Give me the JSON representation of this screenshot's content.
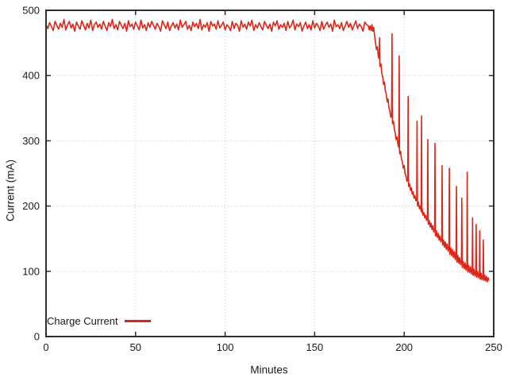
{
  "figure": {
    "background": "#ffffff",
    "border_color": "#2d2d2d",
    "grid_color": "#d6d6d6",
    "text_color": "#1a1a1a"
  },
  "chart_data": {
    "type": "line",
    "title": "",
    "xlabel": "Minutes",
    "ylabel": "Current (mA)",
    "xlim": [
      0,
      250
    ],
    "ylim": [
      0,
      500
    ],
    "x_ticks": [
      0,
      50,
      100,
      150,
      200,
      250
    ],
    "y_ticks": [
      0,
      100,
      200,
      300,
      400,
      500
    ],
    "grid": true,
    "legend": {
      "label": "Charge Current",
      "position": "bottom-left"
    },
    "series": [
      {
        "name": "Charge Current",
        "color": "#dd2517",
        "flat_segment": {
          "x_start": 0,
          "x_step": 1,
          "y": [
            478,
            472,
            481,
            475,
            469,
            483,
            477,
            471,
            480,
            474,
            486,
            470,
            478,
            483,
            473,
            479,
            468,
            482,
            476,
            471,
            484,
            477,
            470,
            480,
            473,
            485,
            469,
            478,
            482,
            474,
            479,
            471,
            483,
            476,
            469,
            481,
            475,
            486,
            472,
            478,
            470,
            483,
            477,
            472,
            480,
            468,
            484,
            475,
            479,
            471,
            482,
            476,
            470,
            485,
            473,
            478,
            469,
            481,
            474,
            483,
            477,
            471,
            480,
            475,
            468,
            484,
            478,
            472,
            482,
            469,
            476,
            481,
            473,
            479,
            470,
            485,
            474,
            478,
            483,
            471,
            477,
            469,
            482,
            475,
            480,
            472,
            486,
            470,
            478,
            474,
            481,
            468,
            483,
            476,
            479,
            471,
            484,
            473,
            477,
            482,
            470,
            478,
            475,
            469,
            483,
            472,
            480,
            477,
            468,
            484,
            474,
            479,
            471,
            482,
            476,
            485,
            469,
            478,
            473,
            481,
            475,
            470,
            483,
            477,
            472,
            479,
            468,
            482,
            476,
            484,
            471,
            478,
            474,
            480,
            469,
            483,
            473,
            477,
            485,
            470,
            479,
            475,
            481,
            468,
            476,
            482,
            472,
            478,
            470,
            484,
            473,
            480,
            476,
            469,
            483,
            471,
            477,
            482,
            474,
            479,
            468,
            485,
            475,
            478,
            472,
            481,
            469,
            476,
            483,
            474,
            480,
            470,
            477,
            484,
            472,
            479,
            475,
            468,
            482,
            478,
            476
          ]
        },
        "decay_points": [
          [
            180.5,
            470
          ],
          [
            181,
            476
          ],
          [
            181.5,
            469
          ],
          [
            182,
            478
          ],
          [
            182.5,
            468
          ],
          [
            183,
            474
          ],
          [
            183.3,
            466
          ],
          [
            183.6,
            458
          ],
          [
            184,
            450
          ],
          [
            184.5,
            440
          ],
          [
            185,
            444
          ],
          [
            185.5,
            430
          ],
          [
            186,
            426
          ],
          [
            186.2,
            458
          ],
          [
            186.4,
            422
          ],
          [
            186.5,
            414
          ],
          [
            187,
            418
          ],
          [
            187.5,
            404
          ],
          [
            188,
            398
          ],
          [
            188.5,
            386
          ],
          [
            189,
            390
          ],
          [
            189.5,
            376
          ],
          [
            190,
            372
          ],
          [
            190.5,
            360
          ],
          [
            191,
            364
          ],
          [
            191.5,
            350
          ],
          [
            192,
            346
          ],
          [
            192.5,
            336
          ],
          [
            193,
            340
          ],
          [
            193.2,
            464
          ],
          [
            193.4,
            334
          ],
          [
            193.5,
            326
          ],
          [
            194,
            330
          ],
          [
            194.5,
            318
          ],
          [
            195,
            312
          ],
          [
            195.5,
            302
          ],
          [
            196,
            306
          ],
          [
            196.5,
            294
          ],
          [
            197,
            290
          ],
          [
            197.2,
            430
          ],
          [
            197.4,
            286
          ],
          [
            197.5,
            280
          ],
          [
            198,
            284
          ],
          [
            198.5,
            272
          ],
          [
            199,
            268
          ],
          [
            199.5,
            258
          ],
          [
            200,
            262
          ],
          [
            200.5,
            250
          ],
          [
            201,
            246
          ],
          [
            201.5,
            238
          ],
          [
            202,
            242
          ],
          [
            202.2,
            368
          ],
          [
            202.4,
            236
          ],
          [
            202.5,
            230
          ],
          [
            203,
            234
          ],
          [
            203.5,
            224
          ],
          [
            204,
            228
          ],
          [
            204.5,
            218
          ],
          [
            205,
            222
          ],
          [
            205.5,
            212
          ],
          [
            206,
            216
          ],
          [
            206.5,
            208
          ],
          [
            207,
            210
          ],
          [
            207.2,
            330
          ],
          [
            207.4,
            204
          ],
          [
            207.5,
            200
          ],
          [
            208,
            206
          ],
          [
            208.5,
            196
          ],
          [
            209,
            200
          ],
          [
            209.5,
            192
          ],
          [
            209.7,
            338
          ],
          [
            209.9,
            190
          ],
          [
            210,
            196
          ],
          [
            210.5,
            186
          ],
          [
            211,
            190
          ],
          [
            211.5,
            182
          ],
          [
            212,
            186
          ],
          [
            212.5,
            178
          ],
          [
            213,
            182
          ],
          [
            213.2,
            302
          ],
          [
            213.4,
            176
          ],
          [
            213.5,
            172
          ],
          [
            214,
            178
          ],
          [
            214.5,
            168
          ],
          [
            215,
            174
          ],
          [
            215.5,
            164
          ],
          [
            216,
            170
          ],
          [
            216.5,
            160
          ],
          [
            217,
            166
          ],
          [
            217.2,
            296
          ],
          [
            217.4,
            158
          ],
          [
            217.5,
            154
          ],
          [
            218,
            162
          ],
          [
            218.5,
            152
          ],
          [
            219,
            158
          ],
          [
            219.5,
            148
          ],
          [
            220,
            154
          ],
          [
            220.5,
            145
          ],
          [
            221,
            151
          ],
          [
            221.2,
            262
          ],
          [
            221.4,
            143
          ],
          [
            221.5,
            140
          ],
          [
            222,
            148
          ],
          [
            222.5,
            137
          ],
          [
            223,
            145
          ],
          [
            223.5,
            134
          ],
          [
            224,
            142
          ],
          [
            224.5,
            131
          ],
          [
            225,
            139
          ],
          [
            225.2,
            258
          ],
          [
            225.4,
            129
          ],
          [
            225.5,
            126
          ],
          [
            226,
            136
          ],
          [
            226.5,
            124
          ],
          [
            227,
            133
          ],
          [
            227.5,
            121
          ],
          [
            228,
            130
          ],
          [
            228.5,
            118
          ],
          [
            229,
            127
          ],
          [
            229.2,
            230
          ],
          [
            229.4,
            116
          ],
          [
            229.5,
            114
          ],
          [
            230,
            124
          ],
          [
            230.5,
            112
          ],
          [
            231,
            121
          ],
          [
            231.5,
            110
          ],
          [
            232,
            118
          ],
          [
            232.2,
            212
          ],
          [
            232.4,
            108
          ],
          [
            232.5,
            106
          ],
          [
            233,
            115
          ],
          [
            233.5,
            104
          ],
          [
            234,
            113
          ],
          [
            234.5,
            102
          ],
          [
            235,
            111
          ],
          [
            235.2,
            252
          ],
          [
            235.4,
            101
          ],
          [
            235.5,
            99
          ],
          [
            236,
            109
          ],
          [
            236.5,
            98
          ],
          [
            237,
            107
          ],
          [
            237.5,
            96
          ],
          [
            238,
            105
          ],
          [
            238.2,
            182
          ],
          [
            238.4,
            95
          ],
          [
            238.5,
            94
          ],
          [
            239,
            103
          ],
          [
            239.5,
            93
          ],
          [
            240,
            101
          ],
          [
            240.2,
            172
          ],
          [
            240.4,
            92
          ],
          [
            240.5,
            91
          ],
          [
            241,
            100
          ],
          [
            241.5,
            90
          ],
          [
            242,
            98
          ],
          [
            242.2,
            162
          ],
          [
            242.4,
            89
          ],
          [
            242.5,
            88
          ],
          [
            243,
            97
          ],
          [
            243.5,
            87
          ],
          [
            244,
            95
          ],
          [
            244.2,
            148
          ],
          [
            244.4,
            87
          ],
          [
            244.5,
            86
          ],
          [
            245,
            94
          ],
          [
            245.5,
            85
          ],
          [
            246,
            92
          ],
          [
            246.5,
            84
          ],
          [
            247,
            90
          ],
          [
            247.3,
            86
          ]
        ]
      }
    ]
  }
}
